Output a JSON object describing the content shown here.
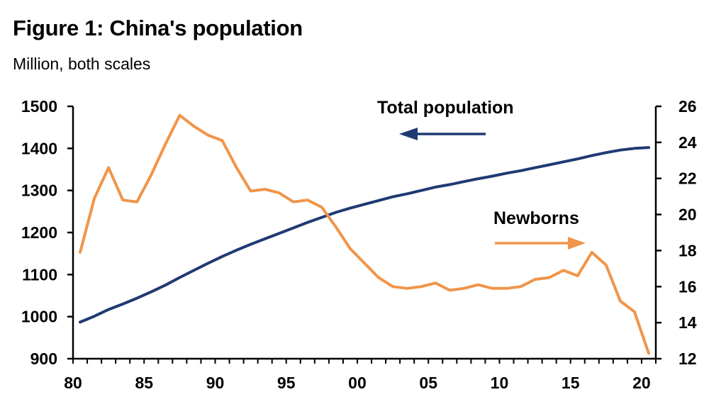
{
  "title": "Figure 1: China's population",
  "subtitle": "Million, both scales",
  "colors": {
    "total": "#1f3a73",
    "newborns": "#f0954a",
    "axis": "#000000"
  },
  "chart_data": {
    "type": "line",
    "title": "Figure 1: China's population",
    "subtitle": "Million, both scales",
    "x_tick_labels": [
      "80",
      "85",
      "90",
      "95",
      "00",
      "05",
      "10",
      "15",
      "20"
    ],
    "x_ticks": [
      1980,
      1985,
      1990,
      1995,
      2000,
      2005,
      2010,
      2015,
      2020
    ],
    "xlim": [
      1980,
      2021
    ],
    "y_left": {
      "ticks": [
        900,
        1000,
        1100,
        1200,
        1300,
        1400,
        1500
      ],
      "lim": [
        900,
        1500
      ]
    },
    "y_right": {
      "ticks": [
        12,
        14,
        16,
        18,
        20,
        22,
        24,
        26
      ],
      "lim": [
        12,
        26
      ]
    },
    "annotations": [
      {
        "text": "Total population",
        "arrow": "left"
      },
      {
        "text": "Newborns",
        "arrow": "right"
      }
    ],
    "series": [
      {
        "name": "Total population",
        "axis": "left",
        "x": [
          1980.5,
          1981.5,
          1982.5,
          1983.5,
          1984.5,
          1985.5,
          1986.5,
          1987.5,
          1988.5,
          1989.5,
          1990.5,
          1991.5,
          1992.5,
          1993.5,
          1994.5,
          1995.5,
          1996.5,
          1997.5,
          1998.5,
          1999.5,
          2000.5,
          2001.5,
          2002.5,
          2003.5,
          2004.5,
          2005.5,
          2006.5,
          2007.5,
          2008.5,
          2009.5,
          2010.5,
          2011.5,
          2012.5,
          2013.5,
          2014.5,
          2015.5,
          2016.5,
          2017.5,
          2018.5,
          2019.5,
          2020.5
        ],
        "values": [
          987,
          1001,
          1017,
          1030,
          1044,
          1059,
          1075,
          1093,
          1110,
          1127,
          1143,
          1158,
          1172,
          1185,
          1198,
          1211,
          1224,
          1236,
          1248,
          1258,
          1267,
          1276,
          1285,
          1292,
          1300,
          1308,
          1314,
          1321,
          1328,
          1334,
          1341,
          1347,
          1354,
          1361,
          1368,
          1375,
          1383,
          1390,
          1396,
          1400,
          1402
        ]
      },
      {
        "name": "Newborns",
        "axis": "right",
        "x": [
          1980.5,
          1981.5,
          1982.5,
          1983.5,
          1984.5,
          1985.5,
          1986.5,
          1987.5,
          1988.5,
          1989.5,
          1990.5,
          1991.5,
          1992.5,
          1993.5,
          1994.5,
          1995.5,
          1996.5,
          1997.5,
          1998.5,
          1999.5,
          2000.5,
          2001.5,
          2002.5,
          2003.5,
          2004.5,
          2005.5,
          2006.5,
          2007.5,
          2008.5,
          2009.5,
          2010.5,
          2011.5,
          2012.5,
          2013.5,
          2014.5,
          2015.5,
          2016.5,
          2017.5,
          2018.5,
          2019.5,
          2020.5
        ],
        "values": [
          17.9,
          20.9,
          22.6,
          20.8,
          20.7,
          22.2,
          23.9,
          25.5,
          24.9,
          24.4,
          24.1,
          22.6,
          21.3,
          21.4,
          21.2,
          20.7,
          20.8,
          20.4,
          19.3,
          18.1,
          17.3,
          16.5,
          16.0,
          15.9,
          16.0,
          16.2,
          15.8,
          15.9,
          16.1,
          15.9,
          15.9,
          16.0,
          16.4,
          16.5,
          16.9,
          16.6,
          17.9,
          17.2,
          15.2,
          14.6,
          12.3
        ]
      }
    ]
  }
}
